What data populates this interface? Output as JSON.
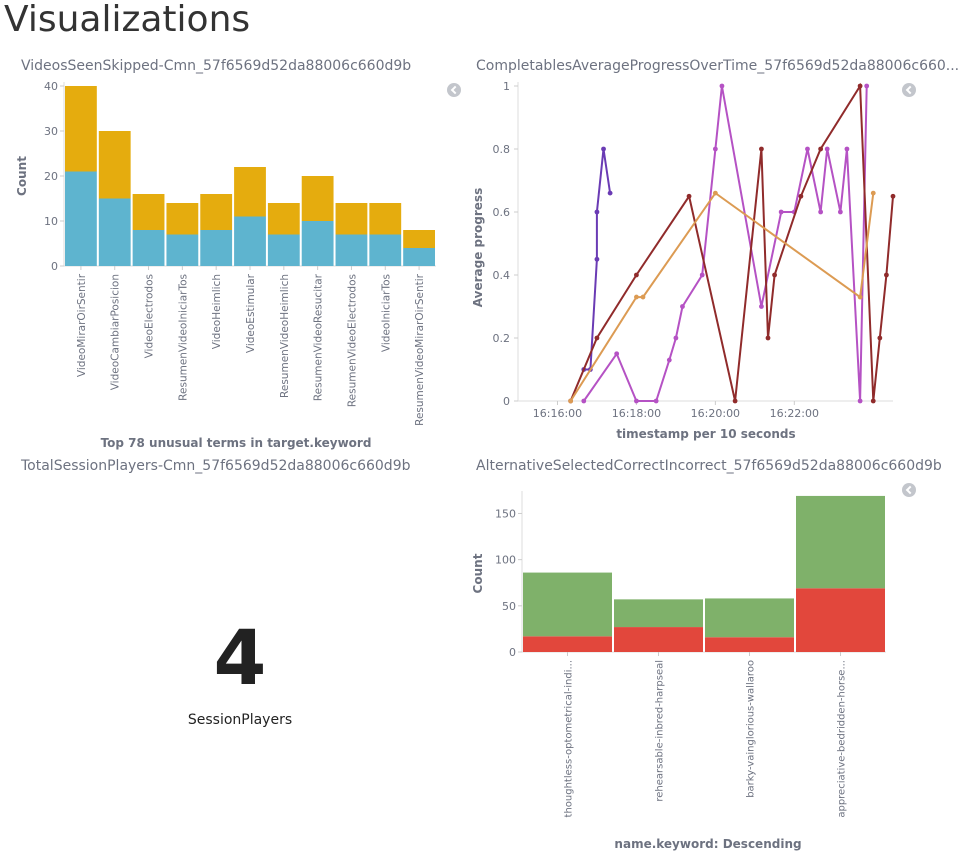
{
  "page": {
    "title": "Visualizations"
  },
  "panels": {
    "videos_seen_skipped": {
      "title": "VideosSeenSkipped-Cmn_57f6569d52da88006c660d9b"
    },
    "completables_progress": {
      "title": "CompletablesAverageProgressOverTime_57f6569d52da88006c660..."
    },
    "total_session_players": {
      "title": "TotalSessionPlayers-Cmn_57f6569d52da88006c660d9b",
      "value": "4",
      "label": "SessionPlayers"
    },
    "alternative_selected": {
      "title": "AlternativeSelectedCorrectIncorrect_57f6569d52da88006c660d9b"
    }
  },
  "colors": {
    "blue": "#5eb4cf",
    "gold": "#e5ac0e",
    "green": "#7fb16a",
    "red": "#e2473c",
    "purple": "#6a3bb4",
    "magenta": "#b552c4",
    "darkred": "#902b2b",
    "orange": "#dc9b53"
  },
  "chart_data": [
    {
      "type": "bar",
      "stacked": true,
      "categories": [
        "VideoMirarOirSentir",
        "VideoCambiarPosicion",
        "VideoElectrodos",
        "ResumenVideoIniciarTos",
        "VideoHeimlich",
        "VideoEstimular",
        "ResumenVideoHeimlich",
        "ResumenVideoResucitar",
        "ResumenVideoElectrodos",
        "VideoIniciarTos",
        "ResumenVideoMirarOirSentir"
      ],
      "series": [
        {
          "values": [
            21,
            15,
            8,
            7,
            8,
            11,
            7,
            10,
            7,
            7,
            4
          ],
          "color": "#5eb4cf"
        },
        {
          "values": [
            19,
            15,
            8,
            7,
            8,
            11,
            7,
            10,
            7,
            7,
            4
          ],
          "color": "#e5ac0e"
        }
      ],
      "xlabel": "Top 78 unusual terms in target.keyword",
      "ylabel": "Count",
      "ylim": [
        0,
        40
      ],
      "yticks": [
        0,
        10,
        20,
        30,
        40
      ]
    },
    {
      "type": "line",
      "xlabel": "timestamp per 10 seconds",
      "ylabel": "Average progress",
      "ylim": [
        0,
        1
      ],
      "yticks": [
        "0",
        "0.2",
        "0.4",
        "0.6",
        "0.8",
        "1"
      ],
      "xticks": [
        "16:16:00",
        "16:18:00",
        "16:20:00",
        "16:22:00"
      ],
      "xrange": [
        "16:15:00",
        "16:24:30"
      ],
      "series": [
        {
          "color": "#6a3bb4",
          "points": [
            [
              "16:16:40",
              0.1
            ],
            [
              "16:16:50",
              0.1
            ],
            [
              "16:17:00",
              0.45
            ],
            [
              "16:17:00",
              0.6
            ],
            [
              "16:17:10",
              0.8
            ],
            [
              "16:17:20",
              0.66
            ]
          ]
        },
        {
          "color": "#b552c4",
          "points": [
            [
              "16:16:40",
              0.0
            ],
            [
              "16:17:30",
              0.15
            ],
            [
              "16:18:00",
              0.0
            ],
            [
              "16:18:30",
              0.0
            ],
            [
              "16:18:50",
              0.13
            ],
            [
              "16:19:00",
              0.2
            ],
            [
              "16:19:10",
              0.3
            ],
            [
              "16:19:40",
              0.4
            ],
            [
              "16:20:00",
              0.8
            ],
            [
              "16:20:10",
              1.0
            ],
            [
              "16:21:10",
              0.3
            ],
            [
              "16:21:40",
              0.6
            ],
            [
              "16:22:00",
              0.6
            ],
            [
              "16:22:20",
              0.8
            ],
            [
              "16:22:40",
              0.6
            ],
            [
              "16:22:50",
              0.8
            ],
            [
              "16:23:10",
              0.6
            ],
            [
              "16:23:20",
              0.8
            ],
            [
              "16:23:40",
              0.0
            ],
            [
              "16:23:50",
              1.0
            ]
          ]
        },
        {
          "color": "#902b2b",
          "points": [
            [
              "16:16:20",
              0.0
            ],
            [
              "16:17:00",
              0.2
            ],
            [
              "16:18:00",
              0.4
            ],
            [
              "16:19:20",
              0.65
            ],
            [
              "16:20:30",
              0.0
            ],
            [
              "16:21:10",
              0.8
            ],
            [
              "16:21:20",
              0.2
            ],
            [
              "16:21:30",
              0.4
            ],
            [
              "16:22:10",
              0.65
            ],
            [
              "16:22:40",
              0.8
            ],
            [
              "16:23:40",
              1.0
            ],
            [
              "16:24:00",
              0.0
            ],
            [
              "16:24:10",
              0.2
            ],
            [
              "16:24:20",
              0.4
            ],
            [
              "16:24:30",
              0.65
            ]
          ]
        },
        {
          "color": "#dc9b53",
          "points": [
            [
              "16:16:20",
              0.0
            ],
            [
              "16:18:00",
              0.33
            ],
            [
              "16:18:10",
              0.33
            ],
            [
              "16:20:00",
              0.66
            ],
            [
              "16:23:40",
              0.33
            ],
            [
              "16:24:00",
              0.66
            ]
          ]
        }
      ]
    },
    {
      "type": "bar",
      "stacked": true,
      "categories": [
        "thoughtless-optometrical-indi...",
        "rehearsable-inbred-harpseal",
        "barky-vainglorious-wallaroo",
        "appreciative-bedridden-horse..."
      ],
      "series": [
        {
          "values": [
            17,
            27,
            16,
            69
          ],
          "color": "#e2473c"
        },
        {
          "values": [
            69,
            30,
            42,
            100
          ],
          "color": "#7fb16a"
        }
      ],
      "xlabel": "name.keyword: Descending",
      "ylabel": "Count",
      "ylim": [
        0,
        170
      ],
      "yticks": [
        0,
        50,
        100,
        150
      ]
    }
  ]
}
